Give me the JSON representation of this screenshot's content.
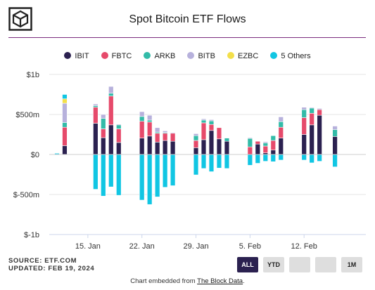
{
  "title": "Spot Bitcoin ETF Flows",
  "colors": {
    "IBIT": "#2b2150",
    "FBTC": "#e64a6b",
    "ARKB": "#33bba8",
    "BITB": "#b7b1dc",
    "EZBC": "#f3df4a",
    "5 Others": "#11c6e3"
  },
  "legend": [
    "IBIT",
    "FBTC",
    "ARKB",
    "BITB",
    "EZBC",
    "5 Others"
  ],
  "chart_data": {
    "type": "bar",
    "stacked": true,
    "title": "Spot Bitcoin ETF Flows",
    "ylim": [
      -1000,
      1000
    ],
    "y_ticks": [
      1000,
      500,
      0,
      -500,
      -1000
    ],
    "y_tick_labels": [
      "$1b",
      "$500m",
      "$0",
      "$-500m",
      "$-1b"
    ],
    "x_tick_labels": [
      {
        "label": "15. Jan",
        "x": "2024-01-15"
      },
      {
        "label": "22. Jan",
        "x": "2024-01-22"
      },
      {
        "label": "29. Jan",
        "x": "2024-01-29"
      },
      {
        "label": "5. Feb",
        "x": "2024-02-05"
      },
      {
        "label": "12. Feb",
        "x": "2024-02-12"
      }
    ],
    "dates": [
      "2024-01-11",
      "2024-01-12",
      "2024-01-16",
      "2024-01-17",
      "2024-01-18",
      "2024-01-19",
      "2024-01-22",
      "2024-01-23",
      "2024-01-24",
      "2024-01-25",
      "2024-01-26",
      "2024-01-29",
      "2024-01-30",
      "2024-01-31",
      "2024-02-01",
      "2024-02-02",
      "2024-02-05",
      "2024-02-06",
      "2024-02-07",
      "2024-02-08",
      "2024-02-09",
      "2024-02-12",
      "2024-02-13",
      "2024-02-14",
      "2024-02-15",
      "2024-02-16"
    ],
    "series": [
      {
        "name": "IBIT",
        "values": [
          0,
          110,
          390,
          210,
          370,
          150,
          205,
          230,
          155,
          175,
          165,
          85,
          185,
          300,
          195,
          165,
          0,
          130,
          20,
          55,
          205,
          250,
          370,
          490,
          0,
          225
        ]
      },
      {
        "name": "FBTC",
        "values": [
          0,
          230,
          200,
          110,
          360,
          170,
          210,
          175,
          110,
          90,
          100,
          90,
          210,
          75,
          140,
          0,
          95,
          35,
          85,
          120,
          135,
          210,
          145,
          70,
          0,
          0
        ]
      },
      {
        "name": "ARKB",
        "values": [
          0,
          60,
          20,
          130,
          35,
          50,
          60,
          25,
          15,
          10,
          0,
          60,
          35,
          45,
          0,
          40,
          105,
          0,
          40,
          60,
          70,
          100,
          65,
          0,
          0,
          85
        ]
      },
      {
        "name": "BITB",
        "values": [
          0,
          240,
          20,
          50,
          85,
          10,
          60,
          60,
          55,
          20,
          10,
          25,
          15,
          15,
          0,
          0,
          10,
          0,
          15,
          0,
          60,
          30,
          10,
          15,
          0,
          45
        ]
      },
      {
        "name": "EZBC",
        "values": [
          0,
          55,
          0,
          0,
          0,
          0,
          0,
          0,
          0,
          0,
          0,
          0,
          0,
          0,
          0,
          0,
          0,
          0,
          0,
          0,
          0,
          0,
          0,
          0,
          0,
          0
        ]
      },
      {
        "name": "5 Others",
        "values": [
          15,
          55,
          -435,
          -520,
          -405,
          -510,
          -570,
          -625,
          -530,
          -410,
          -390,
          -255,
          -175,
          -215,
          -170,
          -175,
          -135,
          -110,
          -85,
          -90,
          -70,
          -70,
          -105,
          -85,
          0,
          -155
        ]
      }
    ]
  },
  "footer": {
    "source": "SOURCE: ETF.COM",
    "updated": "UPDATED: FEB 19, 2024"
  },
  "range_buttons": [
    {
      "label": "ALL",
      "active": true
    },
    {
      "label": "YTD",
      "active": false
    },
    {
      "label": "",
      "active": false
    },
    {
      "label": "",
      "active": false
    },
    {
      "label": "1M",
      "active": false
    }
  ],
  "embed": {
    "prefix": "Chart embedded from ",
    "link": "The Block Data",
    "suffix": "."
  }
}
